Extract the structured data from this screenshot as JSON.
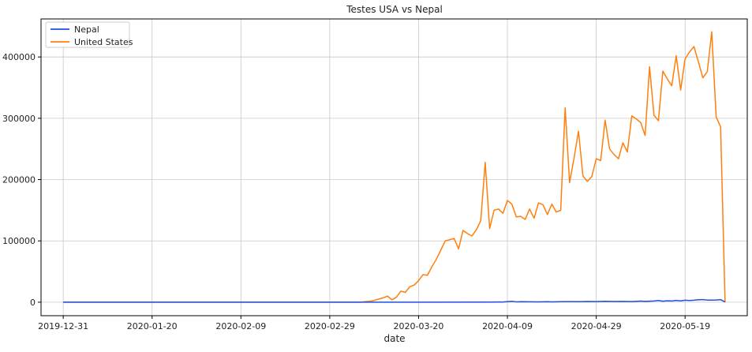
{
  "chart_data": {
    "type": "line",
    "title": "Testes USA vs Nepal",
    "xlabel": "date",
    "ylabel": "",
    "x_start": "2019-12-31",
    "x_end": "2020-05-28",
    "xlim": [
      "2019-12-26",
      "2020-06-02"
    ],
    "ylim": [
      -22000,
      462000
    ],
    "x_ticks": [
      "2019-12-31",
      "2020-01-20",
      "2020-02-09",
      "2020-02-29",
      "2020-03-20",
      "2020-04-09",
      "2020-04-29",
      "2020-05-19"
    ],
    "y_ticks": [
      0,
      100000,
      200000,
      300000,
      400000
    ],
    "y_tick_labels": [
      "0",
      "100000",
      "200000",
      "300000",
      "400000"
    ],
    "grid": true,
    "legend_position": "top-left",
    "series": [
      {
        "name": "Nepal",
        "color": "#1f4fe0",
        "points": [
          [
            "2019-12-31",
            0
          ],
          [
            "2020-03-20",
            0
          ],
          [
            "2020-04-05",
            200
          ],
          [
            "2020-04-08",
            300
          ],
          [
            "2020-04-10",
            1500
          ],
          [
            "2020-04-11",
            600
          ],
          [
            "2020-04-12",
            900
          ],
          [
            "2020-04-14",
            700
          ],
          [
            "2020-04-16",
            600
          ],
          [
            "2020-04-18",
            900
          ],
          [
            "2020-04-19",
            500
          ],
          [
            "2020-04-21",
            800
          ],
          [
            "2020-04-23",
            1000
          ],
          [
            "2020-04-25",
            900
          ],
          [
            "2020-04-27",
            1200
          ],
          [
            "2020-04-29",
            1000
          ],
          [
            "2020-05-01",
            1500
          ],
          [
            "2020-05-03",
            1100
          ],
          [
            "2020-05-05",
            1300
          ],
          [
            "2020-05-07",
            1000
          ],
          [
            "2020-05-09",
            1800
          ],
          [
            "2020-05-10",
            1400
          ],
          [
            "2020-05-12",
            2000
          ],
          [
            "2020-05-13",
            2800
          ],
          [
            "2020-05-14",
            1600
          ],
          [
            "2020-05-15",
            2300
          ],
          [
            "2020-05-16",
            2000
          ],
          [
            "2020-05-17",
            3000
          ],
          [
            "2020-05-18",
            2200
          ],
          [
            "2020-05-19",
            3200
          ],
          [
            "2020-05-20",
            2700
          ],
          [
            "2020-05-21",
            3200
          ],
          [
            "2020-05-22",
            4000
          ],
          [
            "2020-05-23",
            4300
          ],
          [
            "2020-05-24",
            3500
          ],
          [
            "2020-05-25",
            3400
          ],
          [
            "2020-05-26",
            3600
          ],
          [
            "2020-05-27",
            4200
          ],
          [
            "2020-05-28",
            500
          ]
        ]
      },
      {
        "name": "United States",
        "color": "#ff7f0e",
        "points": [
          [
            "2019-12-31",
            0
          ],
          [
            "2020-03-07",
            0
          ],
          [
            "2020-03-08",
            1000
          ],
          [
            "2020-03-09",
            1500
          ],
          [
            "2020-03-10",
            3000
          ],
          [
            "2020-03-11",
            5000
          ],
          [
            "2020-03-12",
            7000
          ],
          [
            "2020-03-13",
            10000
          ],
          [
            "2020-03-14",
            4000
          ],
          [
            "2020-03-15",
            8000
          ],
          [
            "2020-03-16",
            18000
          ],
          [
            "2020-03-17",
            16000
          ],
          [
            "2020-03-18",
            25000
          ],
          [
            "2020-03-19",
            28000
          ],
          [
            "2020-03-20",
            35000
          ],
          [
            "2020-03-21",
            45000
          ],
          [
            "2020-03-22",
            44000
          ],
          [
            "2020-03-23",
            58000
          ],
          [
            "2020-03-24",
            70000
          ],
          [
            "2020-03-25",
            85000
          ],
          [
            "2020-03-26",
            100000
          ],
          [
            "2020-03-27",
            102000
          ],
          [
            "2020-03-28",
            104000
          ],
          [
            "2020-03-29",
            87000
          ],
          [
            "2020-03-30",
            117000
          ],
          [
            "2020-03-31",
            112000
          ],
          [
            "2020-04-01",
            108000
          ],
          [
            "2020-04-02",
            118000
          ],
          [
            "2020-04-03",
            133000
          ],
          [
            "2020-04-04",
            228000
          ],
          [
            "2020-04-05",
            120000
          ],
          [
            "2020-04-06",
            150000
          ],
          [
            "2020-04-07",
            152000
          ],
          [
            "2020-04-08",
            145000
          ],
          [
            "2020-04-09",
            166000
          ],
          [
            "2020-04-10",
            160000
          ],
          [
            "2020-04-11",
            139000
          ],
          [
            "2020-04-12",
            140000
          ],
          [
            "2020-04-13",
            135000
          ],
          [
            "2020-04-14",
            152000
          ],
          [
            "2020-04-15",
            137000
          ],
          [
            "2020-04-16",
            162000
          ],
          [
            "2020-04-17",
            159000
          ],
          [
            "2020-04-18",
            143000
          ],
          [
            "2020-04-19",
            160000
          ],
          [
            "2020-04-20",
            147000
          ],
          [
            "2020-04-21",
            150000
          ],
          [
            "2020-04-22",
            317000
          ],
          [
            "2020-04-23",
            195000
          ],
          [
            "2020-04-24",
            235000
          ],
          [
            "2020-04-25",
            279000
          ],
          [
            "2020-04-26",
            206000
          ],
          [
            "2020-04-27",
            197000
          ],
          [
            "2020-04-28",
            205000
          ],
          [
            "2020-04-29",
            234000
          ],
          [
            "2020-04-30",
            231000
          ],
          [
            "2020-05-01",
            297000
          ],
          [
            "2020-05-02",
            250000
          ],
          [
            "2020-05-03",
            241000
          ],
          [
            "2020-05-04",
            234000
          ],
          [
            "2020-05-05",
            260000
          ],
          [
            "2020-05-06",
            245000
          ],
          [
            "2020-05-07",
            304000
          ],
          [
            "2020-05-08",
            299000
          ],
          [
            "2020-05-09",
            293000
          ],
          [
            "2020-05-10",
            272000
          ],
          [
            "2020-05-11",
            384000
          ],
          [
            "2020-05-12",
            305000
          ],
          [
            "2020-05-13",
            296000
          ],
          [
            "2020-05-14",
            377000
          ],
          [
            "2020-05-15",
            364000
          ],
          [
            "2020-05-16",
            353000
          ],
          [
            "2020-05-17",
            402000
          ],
          [
            "2020-05-18",
            346000
          ],
          [
            "2020-05-19",
            397000
          ],
          [
            "2020-05-20",
            408000
          ],
          [
            "2020-05-21",
            417000
          ],
          [
            "2020-05-22",
            392000
          ],
          [
            "2020-05-23",
            366000
          ],
          [
            "2020-05-24",
            376000
          ],
          [
            "2020-05-25",
            441000
          ],
          [
            "2020-05-26",
            302000
          ],
          [
            "2020-05-27",
            286000
          ],
          [
            "2020-05-28",
            0
          ]
        ]
      }
    ]
  }
}
